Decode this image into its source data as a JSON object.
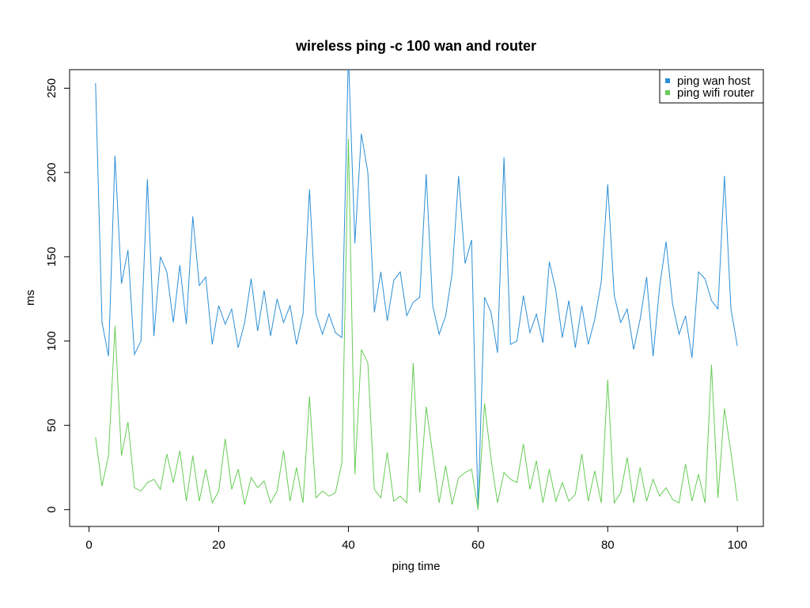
{
  "chart_data": {
    "type": "line",
    "title": "wireless ping -c 100 wan and router",
    "xlabel": "ping time",
    "ylabel": "ms",
    "xlim": [
      -3,
      104
    ],
    "ylim": [
      -10,
      261
    ],
    "x_ticks": [
      0,
      20,
      40,
      60,
      80,
      100
    ],
    "y_ticks": [
      0,
      50,
      100,
      150,
      200,
      250
    ],
    "legend_position": "top-right",
    "x": [
      1,
      2,
      3,
      4,
      5,
      6,
      7,
      8,
      9,
      10,
      11,
      12,
      13,
      14,
      15,
      16,
      17,
      18,
      19,
      20,
      21,
      22,
      23,
      24,
      25,
      26,
      27,
      28,
      29,
      30,
      31,
      32,
      33,
      34,
      35,
      36,
      37,
      38,
      39,
      40,
      41,
      42,
      43,
      44,
      45,
      46,
      47,
      48,
      49,
      50,
      51,
      52,
      53,
      54,
      55,
      56,
      57,
      58,
      59,
      60,
      61,
      62,
      63,
      64,
      65,
      66,
      67,
      68,
      69,
      70,
      71,
      72,
      73,
      74,
      75,
      76,
      77,
      78,
      79,
      80,
      81,
      82,
      83,
      84,
      85,
      86,
      87,
      88,
      89,
      90,
      91,
      92,
      93,
      94,
      95,
      96,
      97,
      98,
      99,
      100
    ],
    "series": [
      {
        "name": "ping wan host",
        "color": "#2c8fd6",
        "values": [
          253,
          111,
          91,
          210,
          134,
          154,
          92,
          100,
          196,
          103,
          150,
          141,
          111,
          145,
          110,
          174,
          133,
          138,
          98,
          121,
          110,
          119,
          96,
          111,
          137,
          106,
          130,
          103,
          125,
          111,
          121,
          98,
          116,
          190,
          116,
          104,
          116,
          105,
          102,
          270,
          158,
          223,
          200,
          117,
          141,
          112,
          136,
          141,
          115,
          123,
          126,
          199,
          121,
          104,
          115,
          140,
          198,
          146,
          160,
          0,
          126,
          117,
          93,
          209,
          98,
          100,
          127,
          105,
          116,
          99,
          147,
          130,
          102,
          124,
          96,
          121,
          98,
          113,
          135,
          193,
          127,
          111,
          119,
          95,
          113,
          138,
          91,
          132,
          159,
          122,
          104,
          115,
          90,
          141,
          137,
          124,
          119,
          198,
          119,
          97
        ]
      },
      {
        "name": "ping wifi router",
        "color": "#66cc55",
        "values": [
          43,
          14,
          32,
          109,
          32,
          52,
          13,
          11,
          16,
          18,
          12,
          33,
          16,
          35,
          5,
          32,
          5,
          24,
          4,
          11,
          42,
          12,
          24,
          3,
          19,
          13,
          17,
          4,
          11,
          35,
          5,
          25,
          4,
          67,
          7,
          11,
          8,
          10,
          28,
          220,
          21,
          95,
          87,
          12,
          7,
          34,
          5,
          8,
          4,
          87,
          10,
          61,
          33,
          4,
          26,
          3,
          19,
          22,
          24,
          0,
          63,
          30,
          4,
          22,
          18,
          16,
          39,
          12,
          29,
          4,
          24,
          5,
          16,
          5,
          9,
          33,
          5,
          23,
          4,
          77,
          4,
          10,
          31,
          4,
          25,
          5,
          18,
          8,
          13,
          6,
          4,
          27,
          5,
          21,
          4,
          86,
          7,
          60,
          34,
          5
        ]
      }
    ]
  }
}
